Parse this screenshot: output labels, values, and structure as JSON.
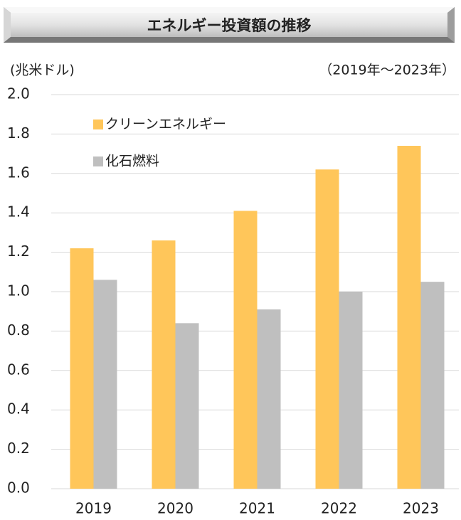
{
  "chart_data": {
    "type": "bar",
    "title": "エネルギー投資額の推移",
    "ylabel": "(兆米ドル)",
    "subtitle": "（2019年～2023年）",
    "categories": [
      "2019",
      "2020",
      "2021",
      "2022",
      "2023"
    ],
    "series": [
      {
        "name": "クリーンエネルギー",
        "color": "#FFC65A",
        "values": [
          1.22,
          1.26,
          1.41,
          1.62,
          1.74
        ]
      },
      {
        "name": "化石燃料",
        "color": "#BFBFBF",
        "values": [
          1.06,
          0.84,
          0.91,
          1.0,
          1.05
        ]
      }
    ],
    "ylim": [
      0,
      2.0
    ],
    "yticks": [
      {
        "value": 0,
        "label": "0.0"
      },
      0.2,
      0.4,
      0.6,
      0.8,
      {
        "value": 1.0,
        "label": "1.0"
      },
      1.2,
      1.4,
      1.6,
      1.8,
      {
        "value": 2.0,
        "label": "2.0"
      }
    ],
    "grid": true,
    "legend": "upper-left"
  }
}
